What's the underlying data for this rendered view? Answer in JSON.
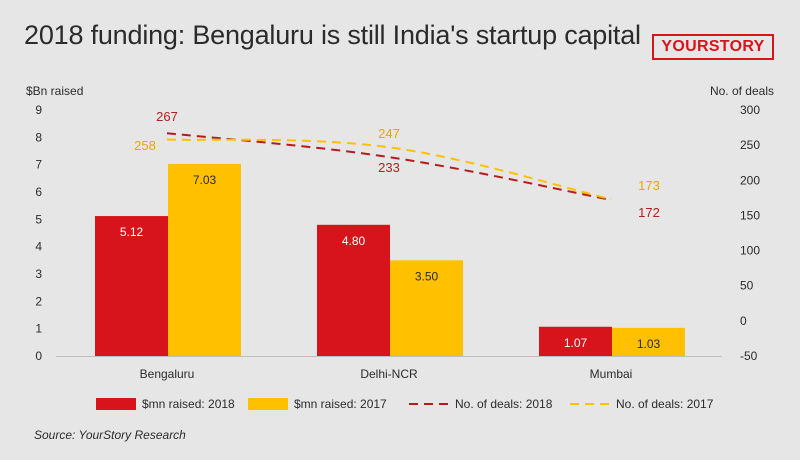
{
  "header": {
    "title": "2018 funding: Bengaluru is still India's startup capital",
    "logo_text": "YOURSTORY"
  },
  "footer": {
    "source": "Source: YourStory Research"
  },
  "colors": {
    "red": "#d7141b",
    "red_line": "#b71c1c",
    "yellow": "#ffc000",
    "yellow_label": "#e6a800",
    "text": "#2b2b2b"
  },
  "chart_data": {
    "type": "bar",
    "title": "2018 funding: Bengaluru is still India's startup capital",
    "categories": [
      "Bengaluru",
      "Delhi-NCR",
      "Mumbai"
    ],
    "ylabel": "$Bn raised",
    "y2label": "No. of deals",
    "ylim": [
      0,
      9
    ],
    "y2lim": [
      -50,
      300
    ],
    "yticks": [
      0,
      1,
      2,
      3,
      4,
      5,
      6,
      7,
      8,
      9
    ],
    "y2ticks": [
      -50,
      0,
      50,
      100,
      150,
      200,
      250,
      300
    ],
    "grid": false,
    "legend_position": "bottom",
    "series": [
      {
        "name": "$mn raised: 2018",
        "kind": "bar",
        "axis": "left",
        "color": "#d7141b",
        "values": [
          5.12,
          4.8,
          1.07
        ],
        "labels": [
          "5.12",
          "4.80",
          "1.07"
        ]
      },
      {
        "name": "$mn raised: 2017",
        "kind": "bar",
        "axis": "left",
        "color": "#ffc000",
        "values": [
          7.03,
          3.5,
          1.03
        ],
        "labels": [
          "7.03",
          "3.50",
          "1.03"
        ]
      },
      {
        "name": "No. of deals: 2018",
        "kind": "line",
        "style": "dashed",
        "axis": "right",
        "color": "#b71c1c",
        "values": [
          267,
          233,
          172
        ],
        "labels": [
          "267",
          "233",
          "172"
        ]
      },
      {
        "name": "No. of deals: 2017",
        "kind": "line",
        "style": "dashed",
        "axis": "right",
        "color": "#ffc000",
        "values": [
          258,
          247,
          173
        ],
        "labels": [
          "258",
          "247",
          "173"
        ]
      }
    ]
  }
}
